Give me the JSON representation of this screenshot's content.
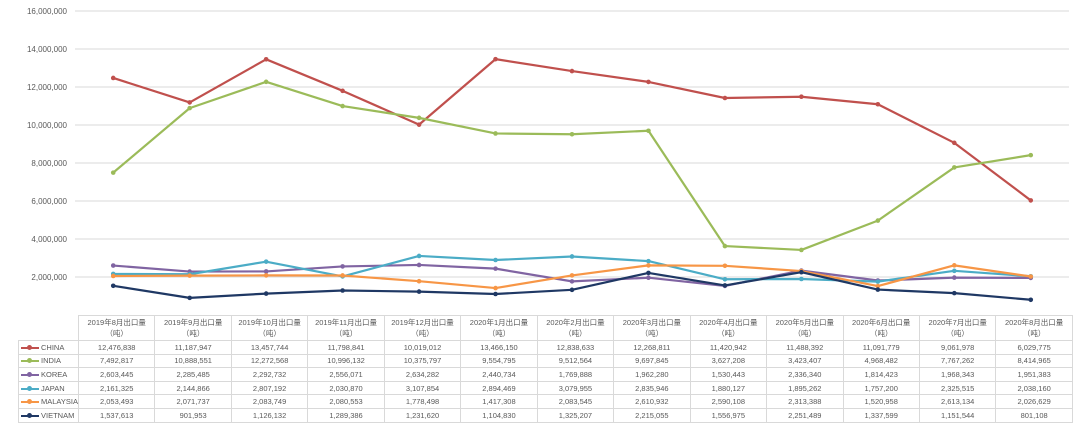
{
  "chart_data": {
    "type": "line",
    "categories": [
      "2019年8月出口量",
      "2019年9月出口量",
      "2019年10月出口量",
      "2019年11月出口量",
      "2019年12月出口量",
      "2020年1月出口量",
      "2020年2月出口量",
      "2020年3月出口量",
      "2020年4月出口量",
      "2020年5月出口量",
      "2020年6月出口量",
      "2020年7月出口量",
      "2020年8月出口量"
    ],
    "unit_label": "（吨）",
    "ylim": [
      0,
      16000000
    ],
    "yticks": [
      "-",
      "2,000,000",
      "4,000,000",
      "6,000,000",
      "8,000,000",
      "10,000,000",
      "12,000,000",
      "14,000,000",
      "16,000,000"
    ],
    "grid": true,
    "legend": "data-table",
    "series": [
      {
        "name": "CHINA",
        "color": "#c0504d",
        "values": [
          12476838,
          11187947,
          13457744,
          11798841,
          10019012,
          13466150,
          12838633,
          12268811,
          11420942,
          11488392,
          11091779,
          9061978,
          6029775
        ],
        "labels": [
          "12,476,838",
          "11,187,947",
          "13,457,744",
          "11,798,841",
          "10,019,012",
          "13,466,150",
          "12,838,633",
          "12,268,811",
          "11,420,942",
          "11,488,392",
          "11,091,779",
          "9,061,978",
          "6,029,775"
        ]
      },
      {
        "name": "INDIA",
        "color": "#9bbb59",
        "values": [
          7492817,
          10888551,
          12272568,
          10996132,
          10375797,
          9554795,
          9512564,
          9697845,
          3627208,
          3423407,
          4968482,
          7767262,
          8414965
        ],
        "labels": [
          "7,492,817",
          "10,888,551",
          "12,272,568",
          "10,996,132",
          "10,375,797",
          "9,554,795",
          "9,512,564",
          "9,697,845",
          "3,627,208",
          "3,423,407",
          "4,968,482",
          "7,767,262",
          "8,414,965"
        ]
      },
      {
        "name": "KOREA",
        "color": "#8064a2",
        "values": [
          2603445,
          2285485,
          2292732,
          2556071,
          2634282,
          2440734,
          1769888,
          1962280,
          1530443,
          2336340,
          1814423,
          1968343,
          1951383
        ],
        "labels": [
          "2,603,445",
          "2,285,485",
          "2,292,732",
          "2,556,071",
          "2,634,282",
          "2,440,734",
          "1,769,888",
          "1,962,280",
          "1,530,443",
          "2,336,340",
          "1,814,423",
          "1,968,343",
          "1,951,383"
        ]
      },
      {
        "name": "JAPAN",
        "color": "#4bacc6",
        "values": [
          2161325,
          2144866,
          2807192,
          2030870,
          3107854,
          2894469,
          3079955,
          2835946,
          1880127,
          1895262,
          1757200,
          2325515,
          2038160
        ],
        "labels": [
          "2,161,325",
          "2,144,866",
          "2,807,192",
          "2,030,870",
          "3,107,854",
          "2,894,469",
          "3,079,955",
          "2,835,946",
          "1,880,127",
          "1,895,262",
          "1,757,200",
          "2,325,515",
          "2,038,160"
        ]
      },
      {
        "name": "MALAYSIA",
        "color": "#f79646",
        "values": [
          2053493,
          2071737,
          2083749,
          2080553,
          1778498,
          1417308,
          2083545,
          2610932,
          2590108,
          2313388,
          1520958,
          2613134,
          2026629
        ],
        "labels": [
          "2,053,493",
          "2,071,737",
          "2,083,749",
          "2,080,553",
          "1,778,498",
          "1,417,308",
          "2,083,545",
          "2,610,932",
          "2,590,108",
          "2,313,388",
          "1,520,958",
          "2,613,134",
          "2,026,629"
        ]
      },
      {
        "name": "VIETNAM",
        "color": "#1f3864",
        "values": [
          1537613,
          901953,
          1126132,
          1289386,
          1231620,
          1104830,
          1325207,
          2215055,
          1556975,
          2251489,
          1337599,
          1151544,
          801108
        ],
        "labels": [
          "1,537,613",
          "901,953",
          "1,126,132",
          "1,289,386",
          "1,231,620",
          "1,104,830",
          "1,325,207",
          "2,215,055",
          "1,556,975",
          "2,251,489",
          "1,337,599",
          "1,151,544",
          "801,108"
        ]
      }
    ]
  }
}
